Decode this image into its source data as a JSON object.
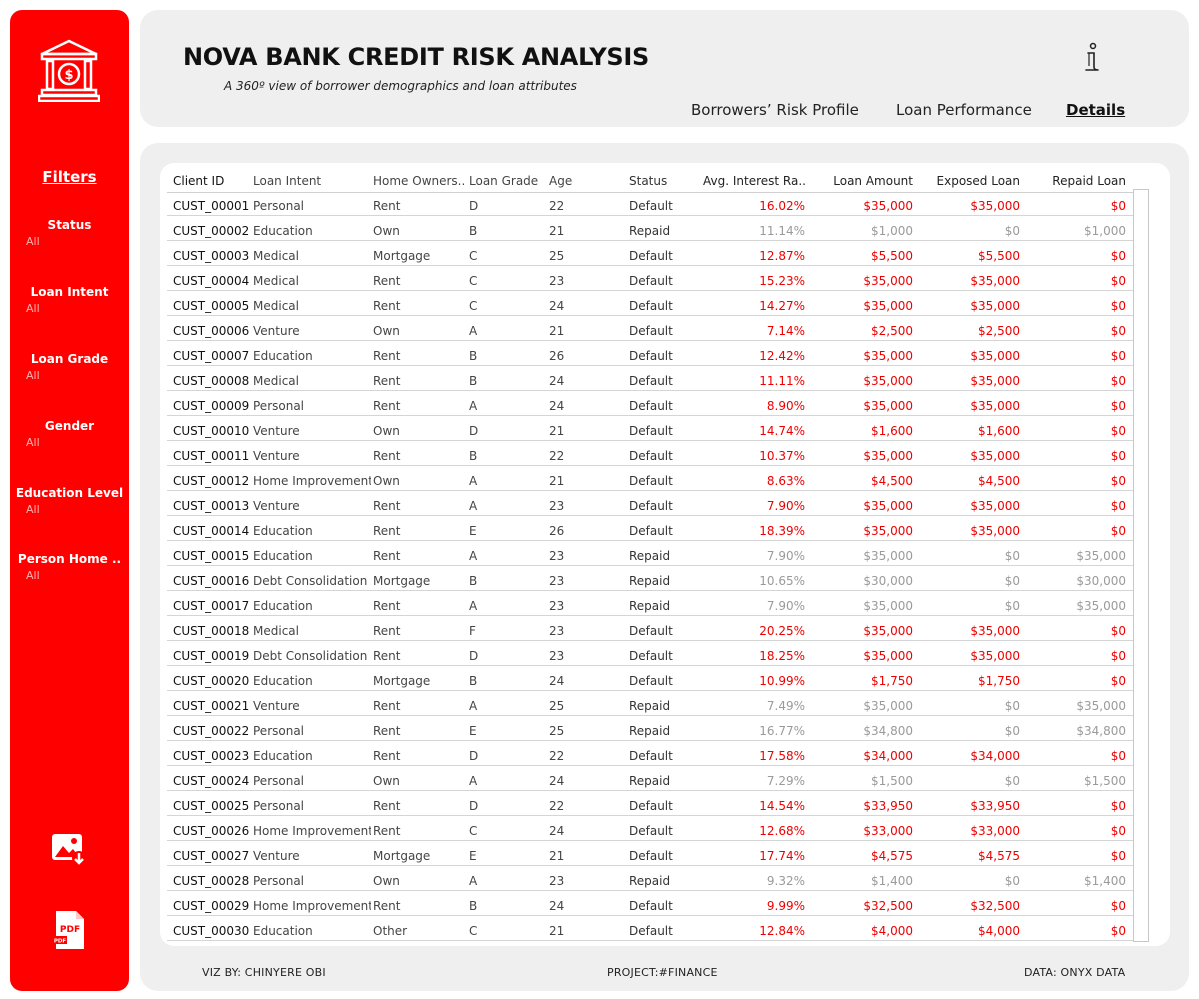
{
  "header": {
    "title": "NOVA BANK CREDIT RISK ANALYSIS",
    "subtitle": "A 360º view of borrower demographics and loan attributes",
    "tabs": [
      {
        "label": "Borrowers’ Risk Profile",
        "active": false
      },
      {
        "label": "Loan Performance",
        "active": false
      },
      {
        "label": "Details",
        "active": true
      }
    ]
  },
  "sidebar": {
    "filters_title": "Filters",
    "filters": [
      {
        "label": "Status",
        "value": "All"
      },
      {
        "label": "Loan Intent",
        "value": "All"
      },
      {
        "label": "Loan Grade",
        "value": "All"
      },
      {
        "label": "Gender",
        "value": "All"
      },
      {
        "label": "Education Level",
        "value": "All"
      },
      {
        "label": "Person Home ..",
        "value": "All"
      }
    ],
    "pdf_label": "PDF",
    "icons": [
      "bank-icon",
      "download-image-icon",
      "pdf-icon",
      "info-icon"
    ]
  },
  "table": {
    "columns": [
      "Client ID",
      "Loan Intent",
      "Home Owners..",
      "Loan Grade",
      "Age",
      "Status",
      "Avg. Interest Ra..",
      "Loan Amount",
      "Exposed Loan",
      "Repaid Loan"
    ],
    "rows": [
      [
        "CUST_00001",
        "Personal",
        "Rent",
        "D",
        "22",
        "Default",
        "16.02%",
        "$35,000",
        "$35,000",
        "$0"
      ],
      [
        "CUST_00002",
        "Education",
        "Own",
        "B",
        "21",
        "Repaid",
        "11.14%",
        "$1,000",
        "$0",
        "$1,000"
      ],
      [
        "CUST_00003",
        "Medical",
        "Mortgage",
        "C",
        "25",
        "Default",
        "12.87%",
        "$5,500",
        "$5,500",
        "$0"
      ],
      [
        "CUST_00004",
        "Medical",
        "Rent",
        "C",
        "23",
        "Default",
        "15.23%",
        "$35,000",
        "$35,000",
        "$0"
      ],
      [
        "CUST_00005",
        "Medical",
        "Rent",
        "C",
        "24",
        "Default",
        "14.27%",
        "$35,000",
        "$35,000",
        "$0"
      ],
      [
        "CUST_00006",
        "Venture",
        "Own",
        "A",
        "21",
        "Default",
        "7.14%",
        "$2,500",
        "$2,500",
        "$0"
      ],
      [
        "CUST_00007",
        "Education",
        "Rent",
        "B",
        "26",
        "Default",
        "12.42%",
        "$35,000",
        "$35,000",
        "$0"
      ],
      [
        "CUST_00008",
        "Medical",
        "Rent",
        "B",
        "24",
        "Default",
        "11.11%",
        "$35,000",
        "$35,000",
        "$0"
      ],
      [
        "CUST_00009",
        "Personal",
        "Rent",
        "A",
        "24",
        "Default",
        "8.90%",
        "$35,000",
        "$35,000",
        "$0"
      ],
      [
        "CUST_00010",
        "Venture",
        "Own",
        "D",
        "21",
        "Default",
        "14.74%",
        "$1,600",
        "$1,600",
        "$0"
      ],
      [
        "CUST_00011",
        "Venture",
        "Rent",
        "B",
        "22",
        "Default",
        "10.37%",
        "$35,000",
        "$35,000",
        "$0"
      ],
      [
        "CUST_00012",
        "Home Improvement",
        "Own",
        "A",
        "21",
        "Default",
        "8.63%",
        "$4,500",
        "$4,500",
        "$0"
      ],
      [
        "CUST_00013",
        "Venture",
        "Rent",
        "A",
        "23",
        "Default",
        "7.90%",
        "$35,000",
        "$35,000",
        "$0"
      ],
      [
        "CUST_00014",
        "Education",
        "Rent",
        "E",
        "26",
        "Default",
        "18.39%",
        "$35,000",
        "$35,000",
        "$0"
      ],
      [
        "CUST_00015",
        "Education",
        "Rent",
        "A",
        "23",
        "Repaid",
        "7.90%",
        "$35,000",
        "$0",
        "$35,000"
      ],
      [
        "CUST_00016",
        "Debt Consolidation",
        "Mortgage",
        "B",
        "23",
        "Repaid",
        "10.65%",
        "$30,000",
        "$0",
        "$30,000"
      ],
      [
        "CUST_00017",
        "Education",
        "Rent",
        "A",
        "23",
        "Repaid",
        "7.90%",
        "$35,000",
        "$0",
        "$35,000"
      ],
      [
        "CUST_00018",
        "Medical",
        "Rent",
        "F",
        "23",
        "Default",
        "20.25%",
        "$35,000",
        "$35,000",
        "$0"
      ],
      [
        "CUST_00019",
        "Debt Consolidation",
        "Rent",
        "D",
        "23",
        "Default",
        "18.25%",
        "$35,000",
        "$35,000",
        "$0"
      ],
      [
        "CUST_00020",
        "Education",
        "Mortgage",
        "B",
        "24",
        "Default",
        "10.99%",
        "$1,750",
        "$1,750",
        "$0"
      ],
      [
        "CUST_00021",
        "Venture",
        "Rent",
        "A",
        "25",
        "Repaid",
        "7.49%",
        "$35,000",
        "$0",
        "$35,000"
      ],
      [
        "CUST_00022",
        "Personal",
        "Rent",
        "E",
        "25",
        "Repaid",
        "16.77%",
        "$34,800",
        "$0",
        "$34,800"
      ],
      [
        "CUST_00023",
        "Education",
        "Rent",
        "D",
        "22",
        "Default",
        "17.58%",
        "$34,000",
        "$34,000",
        "$0"
      ],
      [
        "CUST_00024",
        "Personal",
        "Own",
        "A",
        "24",
        "Repaid",
        "7.29%",
        "$1,500",
        "$0",
        "$1,500"
      ],
      [
        "CUST_00025",
        "Personal",
        "Rent",
        "D",
        "22",
        "Default",
        "14.54%",
        "$33,950",
        "$33,950",
        "$0"
      ],
      [
        "CUST_00026",
        "Home Improvement",
        "Rent",
        "C",
        "24",
        "Default",
        "12.68%",
        "$33,000",
        "$33,000",
        "$0"
      ],
      [
        "CUST_00027",
        "Venture",
        "Mortgage",
        "E",
        "21",
        "Default",
        "17.74%",
        "$4,575",
        "$4,575",
        "$0"
      ],
      [
        "CUST_00028",
        "Personal",
        "Own",
        "A",
        "23",
        "Repaid",
        "9.32%",
        "$1,400",
        "$0",
        "$1,400"
      ],
      [
        "CUST_00029",
        "Home Improvement",
        "Rent",
        "B",
        "24",
        "Default",
        "9.99%",
        "$32,500",
        "$32,500",
        "$0"
      ],
      [
        "CUST_00030",
        "Education",
        "Other",
        "C",
        "21",
        "Default",
        "12.84%",
        "$4,000",
        "$4,000",
        "$0"
      ]
    ]
  },
  "footer": {
    "viz_by": "VIZ BY: CHINYERE OBI",
    "project": "PROJECT:#FINANCE",
    "data": "DATA: ONYX DATA"
  },
  "colors": {
    "accent": "#ff0000",
    "default_text": "#ee0000",
    "repaid_text": "#9a9a9a",
    "panel": "#efefef"
  }
}
